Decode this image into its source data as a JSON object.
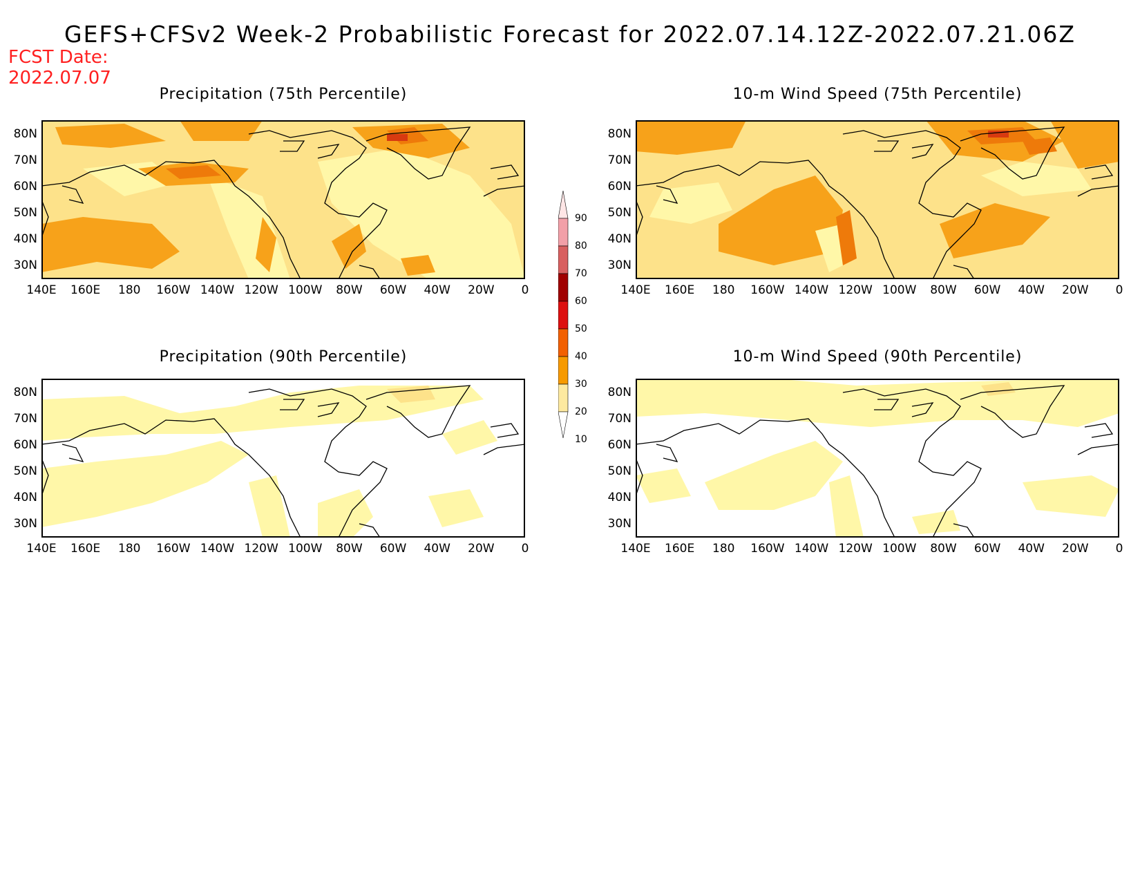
{
  "header": {
    "title": "GEFS+CFSv2 Week-2 Probabilistic Forecast for 2022.07.14.12Z-2022.07.21.06Z",
    "fcst_label": "FCST Date:",
    "fcst_date": "2022.07.07"
  },
  "axes": {
    "lat_labels": [
      "80N",
      "70N",
      "60N",
      "50N",
      "40N",
      "30N"
    ],
    "lon_labels": [
      "140E",
      "160E",
      "180",
      "160W",
      "140W",
      "120W",
      "100W",
      "80W",
      "60W",
      "40W",
      "20W",
      "0"
    ]
  },
  "panels": [
    {
      "title": "Precipitation (75th Percentile)",
      "variable": "precip",
      "percentile": 75
    },
    {
      "title": "10-m Wind Speed (75th Percentile)",
      "variable": "wind",
      "percentile": 75
    },
    {
      "title": "Precipitation (90th Percentile)",
      "variable": "precip",
      "percentile": 90
    },
    {
      "title": "10-m Wind Speed (90th Percentile)",
      "variable": "wind",
      "percentile": 90
    }
  ],
  "colorbar": {
    "labels": [
      "90",
      "80",
      "70",
      "60",
      "50",
      "40",
      "30",
      "20",
      "10"
    ],
    "colors": [
      "#ffe6e6",
      "#f2a0a8",
      "#d86060",
      "#a00000",
      "#dd1010",
      "#f26000",
      "#f79a00",
      "#fde9a0",
      "#ffffff"
    ]
  },
  "palette": {
    "white": "#ffffff",
    "light_yellow": "#fff7a8",
    "yellow": "#fde28a",
    "orange": "#f7a21a",
    "dark_orange": "#ee7a0a",
    "red": "#d83a10"
  }
}
